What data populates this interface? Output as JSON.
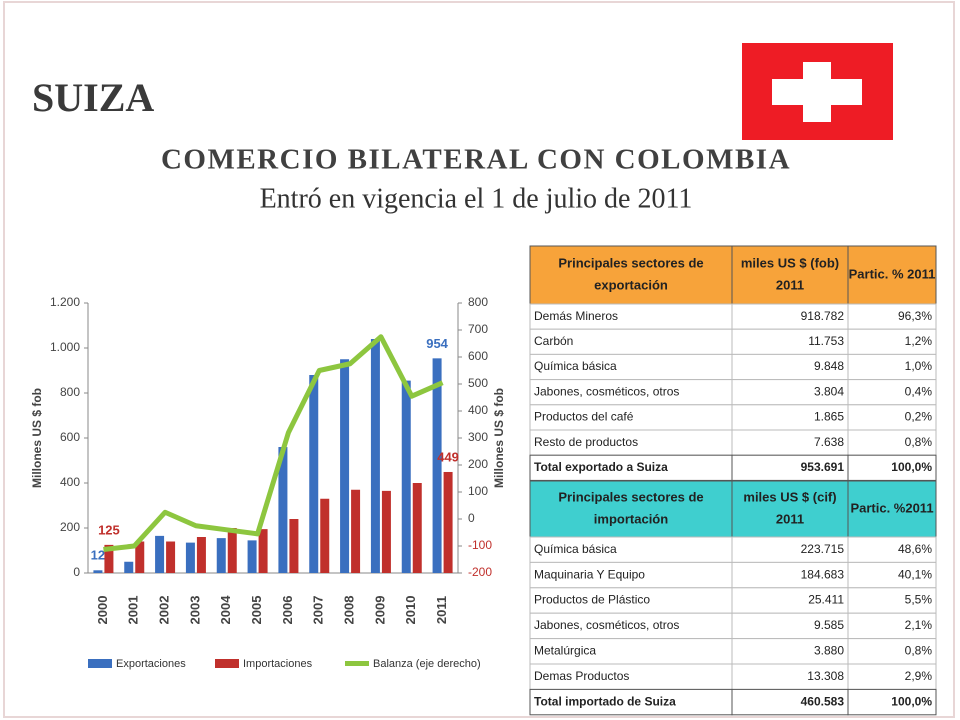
{
  "title": "SUIZA",
  "subtitle": "COMERCIO BILATERAL CON COLOMBIA",
  "note": "Entró en vigencia el 1 de julio de 2011",
  "chart_data": {
    "type": "bar",
    "ylabel": "Millones US $ fob",
    "y2label": "Millones US $ fob",
    "categories": [
      "2000",
      "2001",
      "2002",
      "2003",
      "2004",
      "2005",
      "2006",
      "2007",
      "2008",
      "2009",
      "2010",
      "2011"
    ],
    "series": [
      {
        "name": "Exportaciones",
        "color": "#3a6fbf",
        "values": [
          12,
          50,
          165,
          135,
          155,
          145,
          560,
          880,
          950,
          1040,
          855,
          954
        ],
        "value_labels": [
          "12",
          null,
          null,
          null,
          null,
          null,
          null,
          null,
          null,
          null,
          null,
          "954"
        ]
      },
      {
        "name": "Importaciones",
        "color": "#c0302c",
        "values": [
          125,
          140,
          140,
          160,
          200,
          195,
          240,
          330,
          370,
          365,
          400,
          449
        ],
        "value_labels": [
          "125",
          null,
          null,
          null,
          null,
          null,
          null,
          null,
          null,
          null,
          null,
          "449"
        ]
      },
      {
        "name": "Balanza (eje derecho)",
        "color": "#8dc63f",
        "type": "line",
        "axis": "y2",
        "values": [
          -113,
          -100,
          25,
          -25,
          -40,
          -55,
          320,
          550,
          575,
          675,
          455,
          505
        ]
      }
    ],
    "ylim": [
      0,
      1200
    ],
    "yticks": [
      0,
      200,
      400,
      600,
      800,
      {
        "value": 1000,
        "label": "1.000"
      },
      {
        "value": 1200,
        "label": "1.200"
      }
    ],
    "y2lim": [
      -200,
      800
    ],
    "y2ticks": [
      -200,
      -100,
      0,
      100,
      200,
      300,
      400,
      500,
      600,
      700,
      800
    ]
  },
  "table": {
    "export": {
      "header": [
        [
          "Principales sectores de",
          "exportación"
        ],
        [
          "miles US $ (fob)",
          "2011"
        ],
        [
          "Partic. % 2011"
        ]
      ],
      "rows": [
        [
          "Demás Mineros",
          "918.782",
          "96,3%"
        ],
        [
          "Carbón",
          "11.753",
          "1,2%"
        ],
        [
          "Química básica",
          "9.848",
          "1,0%"
        ],
        [
          "Jabones, cosméticos, otros",
          "3.804",
          "0,4%"
        ],
        [
          "Productos del café",
          "1.865",
          "0,2%"
        ],
        [
          "Resto de productos",
          "7.638",
          "0,8%"
        ]
      ],
      "total": [
        "Total exportado a Suiza",
        "953.691",
        "100,0%"
      ]
    },
    "import": {
      "header": [
        [
          "Principales sectores de",
          "importación"
        ],
        [
          "miles  US $ (cif)",
          "2011"
        ],
        [
          "Partic. %2011"
        ]
      ],
      "rows": [
        [
          "Química básica",
          "223.715",
          "48,6%"
        ],
        [
          "Maquinaria Y Equipo",
          "184.683",
          "40,1%"
        ],
        [
          "Productos de Plástico",
          "25.411",
          "5,5%"
        ],
        [
          "Jabones, cosméticos, otros",
          "9.585",
          "2,1%"
        ],
        [
          "Metalúrgica",
          "3.880",
          "0,8%"
        ],
        [
          "Demas Productos",
          "13.308",
          "2,9%"
        ]
      ],
      "total": [
        "Total importado de Suiza",
        "460.583",
        "100,0%"
      ]
    }
  }
}
